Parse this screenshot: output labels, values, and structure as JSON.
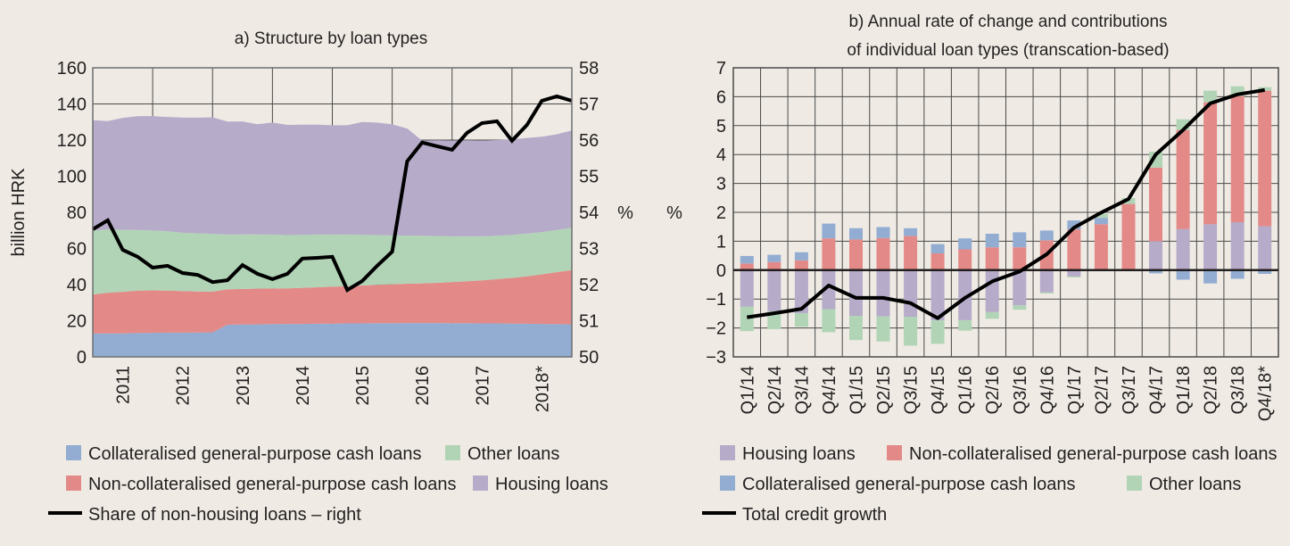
{
  "colors": {
    "collateralised": "#92acd2",
    "non_collateralised": "#e38a88",
    "other": "#b1d4b6",
    "housing": "#b6abc9",
    "line": "#000000",
    "grid": "#4a4a4a",
    "background": "#efebe4"
  },
  "chart_data": [
    {
      "id": "a",
      "type": "area",
      "title": "a) Structure by loan types",
      "ylabel": "billion HRK",
      "y2label": "%",
      "ylim": [
        0,
        160
      ],
      "yticks": [
        0,
        20,
        40,
        60,
        80,
        100,
        120,
        140,
        160
      ],
      "y2lim": [
        50,
        58
      ],
      "y2ticks": [
        50,
        51,
        52,
        53,
        54,
        55,
        56,
        57,
        58
      ],
      "grid": true,
      "xticklabels": [
        "2011",
        "2012",
        "2013",
        "2014",
        "2015",
        "2016",
        "2017",
        "2018*"
      ],
      "x": [
        "Q3/10",
        "Q4/10",
        "Q1/11",
        "Q2/11",
        "Q3/11",
        "Q4/11",
        "Q1/12",
        "Q2/12",
        "Q3/12",
        "Q4/12",
        "Q1/13",
        "Q2/13",
        "Q3/13",
        "Q4/13",
        "Q1/14",
        "Q2/14",
        "Q3/14",
        "Q4/14",
        "Q1/15",
        "Q2/15",
        "Q3/15",
        "Q4/15",
        "Q1/16",
        "Q2/16",
        "Q3/16",
        "Q4/16",
        "Q1/17",
        "Q2/17",
        "Q3/17",
        "Q4/17",
        "Q1/18",
        "Q2/18",
        "Q3/18"
      ],
      "stacked_series": [
        {
          "name": "Collateralised general-purpose cash loans",
          "color_key": "collateralised",
          "values": [
            13,
            13,
            13,
            13.2,
            13.3,
            13.4,
            13.4,
            13.5,
            13.6,
            17.8,
            18,
            18,
            18.1,
            18.2,
            18.2,
            18.3,
            18.4,
            18.5,
            18.5,
            18.6,
            18.6,
            18.7,
            18.7,
            18.7,
            18.6,
            18.6,
            18.5,
            18.5,
            18.4,
            18.3,
            18.2,
            18.1,
            18
          ]
        },
        {
          "name": "Non-collateralised general-purpose cash loans",
          "color_key": "non_collateralised",
          "values": [
            21.5,
            22.5,
            23,
            23.5,
            23.5,
            23.3,
            23,
            22.7,
            22.5,
            19.6,
            19.6,
            19.8,
            19.8,
            19.7,
            20,
            20.2,
            20.4,
            20.6,
            21,
            21.3,
            21.6,
            21.8,
            22,
            22.3,
            22.8,
            23.3,
            23.8,
            24.5,
            25.3,
            26.3,
            27.5,
            28.8,
            30
          ]
        },
        {
          "name": "Other loans",
          "color_key": "other",
          "values": [
            35.5,
            35,
            34.3,
            33.5,
            33.2,
            32.8,
            32.3,
            32.2,
            32,
            30.3,
            30.2,
            30,
            29.8,
            29.5,
            29.3,
            29.2,
            28.9,
            28.6,
            28,
            27.5,
            27,
            26.6,
            26.3,
            25.9,
            25.3,
            24.8,
            24.4,
            24,
            23.8,
            23.6,
            23.4,
            23.3,
            23.5
          ]
        },
        {
          "name": "Housing loans",
          "color_key": "housing",
          "values": [
            61,
            60,
            62,
            63,
            63.3,
            63.3,
            63.8,
            64,
            64.5,
            62.5,
            62.5,
            61,
            62,
            61,
            61,
            60.8,
            60.5,
            60.5,
            62.5,
            62.3,
            61.5,
            59.3,
            52.7,
            53,
            53,
            53.2,
            53,
            53,
            52.8,
            53,
            52.8,
            53,
            53.8
          ]
        }
      ],
      "line_series": {
        "name": "Share of non-housing loans – right",
        "axis": "right",
        "values": [
          53.53,
          53.78,
          52.96,
          52.77,
          52.47,
          52.52,
          52.32,
          52.27,
          52.07,
          52.12,
          52.54,
          52.3,
          52.15,
          52.3,
          52.72,
          52.74,
          52.77,
          51.85,
          52.1,
          52.52,
          52.91,
          55.41,
          55.93,
          55.83,
          55.73,
          56.2,
          56.47,
          56.52,
          55.98,
          56.42,
          57.09,
          57.21,
          57.09
        ]
      },
      "legend": [
        {
          "label": "Collateralised general-purpose cash loans",
          "type": "swatch",
          "color_key": "collateralised"
        },
        {
          "label": "Other loans",
          "type": "swatch",
          "color_key": "other"
        },
        {
          "label": "Non-collateralised general-purpose cash loans",
          "type": "swatch",
          "color_key": "non_collateralised"
        },
        {
          "label": "Housing loans",
          "type": "swatch",
          "color_key": "housing"
        },
        {
          "label": "Share of non-housing loans – right",
          "type": "line"
        }
      ],
      "legend_position": "bottom"
    },
    {
      "id": "b",
      "type": "bar",
      "stacked": true,
      "title_lines": [
        "b) Annual rate of change and contributions",
        "of individual loan types (transcation-based)"
      ],
      "ylabel": "%",
      "ylim": [
        -3,
        7
      ],
      "yticks": [
        -3,
        -2,
        -1,
        0,
        1,
        2,
        3,
        4,
        5,
        6,
        7
      ],
      "grid": true,
      "categories": [
        "Q1/14",
        "Q2/14",
        "Q3/14",
        "Q4/14",
        "Q1/15",
        "Q2/15",
        "Q3/15",
        "Q4/15",
        "Q1/16",
        "Q2/16",
        "Q3/16",
        "Q4/16",
        "Q1/17",
        "Q2/17",
        "Q3/17",
        "Q4/17",
        "Q1/18",
        "Q2/18",
        "Q3/18",
        "Q4/18*"
      ],
      "series": [
        {
          "name": "Housing loans",
          "color_key": "housing",
          "values": [
            -1.27,
            -1.42,
            -1.49,
            -1.35,
            -1.58,
            -1.6,
            -1.61,
            -1.74,
            -1.73,
            -1.45,
            -1.22,
            -0.77,
            -0.22,
            0.0,
            0.0,
            1.0,
            1.42,
            1.59,
            1.66,
            1.52
          ]
        },
        {
          "name": "Non-collateralised general-purpose cash loans",
          "color_key": "non_collateralised",
          "values": [
            0.23,
            0.28,
            0.34,
            1.1,
            1.06,
            1.11,
            1.18,
            0.58,
            0.72,
            0.79,
            0.79,
            1.03,
            1.41,
            1.59,
            2.29,
            2.55,
            3.43,
            4.22,
            4.36,
            4.69
          ]
        },
        {
          "name": "Collateralised general-purpose cash loans",
          "color_key": "collateralised",
          "values": [
            0.26,
            0.25,
            0.28,
            0.51,
            0.39,
            0.38,
            0.27,
            0.32,
            0.38,
            0.47,
            0.52,
            0.34,
            0.31,
            0.22,
            0.0,
            -0.11,
            -0.33,
            -0.46,
            -0.3,
            -0.13
          ]
        },
        {
          "name": "Other loans",
          "color_key": "other",
          "values": [
            -0.84,
            -0.62,
            -0.47,
            -0.8,
            -0.84,
            -0.87,
            -1.0,
            -0.81,
            -0.36,
            -0.23,
            -0.15,
            -0.04,
            -0.03,
            0.13,
            0.2,
            0.55,
            0.37,
            0.4,
            0.34,
            0.12
          ]
        }
      ],
      "line_series": {
        "name": "Total credit growth",
        "values": [
          -1.63,
          -1.49,
          -1.34,
          -0.53,
          -0.96,
          -0.96,
          -1.14,
          -1.66,
          -0.96,
          -0.39,
          -0.05,
          0.55,
          1.47,
          1.99,
          2.46,
          4.0,
          4.85,
          5.77,
          6.08,
          6.23
        ]
      },
      "legend": [
        {
          "label": "Housing loans",
          "type": "swatch",
          "color_key": "housing"
        },
        {
          "label": "Non-collateralised general-purpose cash loans",
          "type": "swatch",
          "color_key": "non_collateralised"
        },
        {
          "label": "Collateralised general-purpose cash loans",
          "type": "swatch",
          "color_key": "collateralised"
        },
        {
          "label": "Other loans",
          "type": "swatch",
          "color_key": "other"
        },
        {
          "label": "Total credit growth",
          "type": "line"
        }
      ],
      "legend_position": "bottom"
    }
  ]
}
